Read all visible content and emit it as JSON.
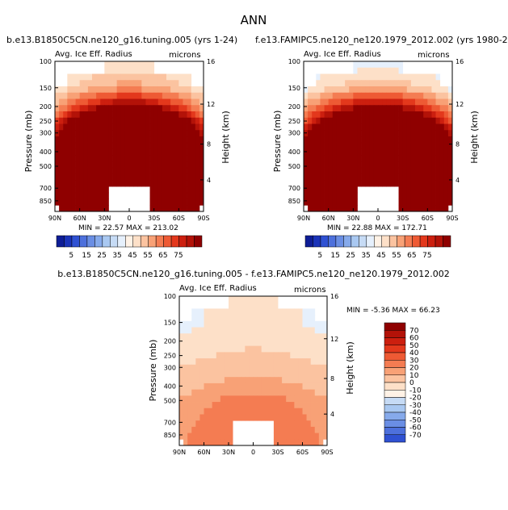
{
  "figure_title": "ANN",
  "colors": {
    "positive": [
      "#fff2e6",
      "#fde0c8",
      "#fbc3a0",
      "#f8a176",
      "#f47c52",
      "#ee5a34",
      "#e3381c",
      "#cc1f0f",
      "#b31208",
      "#8f0000"
    ],
    "negative": [
      "#e6f0fc",
      "#c6dbf5",
      "#a9c8f1",
      "#86aaeb",
      "#6a8ee4",
      "#4d70dc",
      "#2f51d2",
      "#1a33b8",
      "#0e1d96",
      "#04096a"
    ],
    "frame": "#000000"
  },
  "panels": {
    "left": {
      "title": "b.e13.B1850C5CN.ne120_g16.tuning.005 (yrs 1-24)",
      "variable": "Avg. Ice Eff. Radius",
      "units": "microns",
      "y_axis_label": "Pressure (mb)",
      "right_axis_label": "Height (km)",
      "stats": "MIN =  22.57   MAX = 213.02"
    },
    "right": {
      "title": "f.e13.FAMIPC5.ne120_ne120.1979_2012.002 (yrs 1980-2",
      "variable": "Avg. Ice Eff. Radius",
      "units": "microns",
      "y_axis_label": "Pressure (mb)",
      "right_axis_label": "Height (km)",
      "stats": "MIN =  22.88   MAX = 172.71"
    },
    "diff": {
      "title": "b.e13.B1850C5CN.ne120_g16.tuning.005 - f.e13.FAMIPC5.ne120_ne120.1979_2012.002",
      "variable": "Avg. Ice Eff. Radius",
      "units": "microns",
      "y_axis_label": "Pressure (mb)",
      "right_axis_label": "Height (km)",
      "stats": "MIN =  -5.36    MAX =  66.23"
    }
  },
  "chart_data": [
    {
      "type": "heatmap",
      "title": "b.e13.B1850C5CN.ne120_g16.tuning.005 (yrs 1-24)",
      "subtitle": "Avg. Ice Eff. Radius (microns)",
      "xlabel": "Latitude",
      "ylabel": "Pressure (mb)",
      "y2label": "Height (km)",
      "x_ticks": [
        "90N",
        "60N",
        "30N",
        "0",
        "30S",
        "60S",
        "90S"
      ],
      "y_ticks": [
        100,
        150,
        200,
        250,
        300,
        400,
        500,
        700,
        850
      ],
      "y2_ticks": [
        16,
        12,
        8,
        4
      ],
      "ylim": [
        1000,
        100
      ],
      "color_levels": [
        5,
        10,
        15,
        20,
        25,
        30,
        35,
        40,
        45,
        50,
        55,
        60,
        65,
        70,
        75
      ],
      "colorbar_labels": [
        "5",
        "15",
        "25",
        "35",
        "45",
        "55",
        "65",
        "75"
      ],
      "min": 22.57,
      "max": 213.02,
      "profile_levels": [
        100,
        150,
        200,
        300,
        400,
        500,
        700,
        850
      ],
      "equator_values": [
        35,
        48,
        80,
        150,
        190,
        200,
        210,
        210
      ],
      "pole_values": [
        null,
        35,
        45,
        70,
        110,
        150,
        190,
        200
      ]
    },
    {
      "type": "heatmap",
      "title": "f.e13.FAMIPC5.ne120_ne120.1979_2012.002 (yrs 1980-2",
      "subtitle": "Avg. Ice Eff. Radius (microns)",
      "xlabel": "Latitude",
      "ylabel": "Pressure (mb)",
      "y2label": "Height (km)",
      "x_ticks": [
        "90N",
        "60N",
        "30N",
        "0",
        "30S",
        "60S",
        "90S"
      ],
      "y_ticks": [
        100,
        150,
        200,
        250,
        300,
        400,
        500,
        700,
        850
      ],
      "y2_ticks": [
        16,
        12,
        8,
        4
      ],
      "ylim": [
        1000,
        100
      ],
      "color_levels": [
        5,
        10,
        15,
        20,
        25,
        30,
        35,
        40,
        45,
        50,
        55,
        60,
        65,
        70,
        75
      ],
      "colorbar_labels": [
        "5",
        "15",
        "25",
        "35",
        "45",
        "55",
        "65",
        "75"
      ],
      "min": 22.88,
      "max": 172.71,
      "profile_levels": [
        100,
        150,
        200,
        300,
        400,
        500,
        700,
        850
      ],
      "equator_values": [
        30,
        45,
        78,
        140,
        165,
        170,
        172,
        172
      ],
      "pole_values": [
        null,
        33,
        44,
        68,
        100,
        135,
        165,
        170
      ]
    },
    {
      "type": "heatmap",
      "title": "b.e13.B1850C5CN.ne120_g16.tuning.005 - f.e13.FAMIPC5.ne120_ne120.1979_2012.002",
      "subtitle": "Avg. Ice Eff. Radius (microns)",
      "xlabel": "Latitude",
      "ylabel": "Pressure (mb)",
      "y2label": "Height (km)",
      "x_ticks": [
        "90N",
        "60N",
        "30N",
        "0",
        "30S",
        "60S",
        "90S"
      ],
      "y_ticks": [
        100,
        150,
        200,
        250,
        300,
        400,
        500,
        700,
        850
      ],
      "y2_ticks": [
        16,
        12,
        8,
        4
      ],
      "ylim": [
        1000,
        100
      ],
      "color_levels": [
        -70,
        -60,
        -50,
        -40,
        -30,
        -20,
        -10,
        0,
        10,
        20,
        30,
        40,
        50,
        60,
        70
      ],
      "colorbar_labels": [
        "70",
        "60",
        "50",
        "40",
        "30",
        "20",
        "10",
        "0",
        "-10",
        "-20",
        "-30",
        "-40",
        "-50",
        "-60",
        "-70"
      ],
      "min": -5.36,
      "max": 66.23,
      "profile_levels": [
        100,
        150,
        200,
        300,
        400,
        500,
        700,
        850
      ],
      "equator_values": [
        5,
        5,
        8,
        15,
        25,
        35,
        40,
        38
      ],
      "pole_values": [
        null,
        -5,
        2,
        10,
        15,
        20,
        25,
        28
      ]
    }
  ]
}
